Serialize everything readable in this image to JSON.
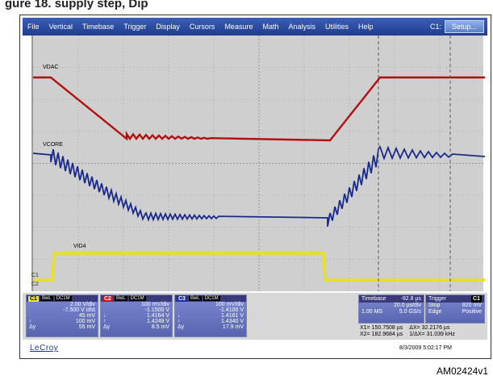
{
  "page": {
    "cut_title": "gure 18.    supply  step, Dip",
    "footer_code": "AM02424v1"
  },
  "menu": {
    "items": [
      "File",
      "Vertical",
      "Timebase",
      "Trigger",
      "Display",
      "Cursors",
      "Measure",
      "Math",
      "Analysis",
      "Utilities",
      "Help"
    ],
    "channel_label": "C1:",
    "setup_label": "Setup..."
  },
  "waveforms": {
    "vdac_label": "VDAC",
    "vcore_label": "VCORE",
    "vid4_label": "VID4",
    "colors": {
      "vdac": "#b01010",
      "vcore": "#1a2a8a",
      "vid4": "#e8e020",
      "grid": "#8a8a8a",
      "cursor": "#505050"
    },
    "markers": {
      "c1": "C1",
      "c2": "C2",
      "c3": "C3"
    }
  },
  "channels": {
    "c1": {
      "tag": "C1",
      "cplg": "BwL",
      "coupling": "DC1M",
      "vdiv": "2.00 V/div",
      "ofst": "-7.500 V ofst",
      "mean_lbl": "",
      "mean": "45 mV",
      "v1_lbl": "↑",
      "v1": "100 mV",
      "dv_lbl": "Δy",
      "dv": "55 mV"
    },
    "c2": {
      "tag": "C2",
      "cplg": "BwL",
      "coupling": "DC1M",
      "vdiv": "100 mV/div",
      "ofst": "-1.1500 V",
      "mean_lbl": "↓",
      "mean": "1.4164 V",
      "v1_lbl": "↑",
      "v1": "1.4249 V",
      "dv_lbl": "Δy",
      "dv": "8.5 mV"
    },
    "c3": {
      "tag": "C3",
      "cplg": "BwL",
      "coupling": "DC1M",
      "vdiv": "100 mV/div",
      "ofst": "-1.4100 V",
      "mean_lbl": "↓",
      "mean": "1.4161 V",
      "v1_lbl": "↑",
      "v1": "1.4340 V",
      "dv_lbl": "Δy",
      "dv": "17.9 mV"
    }
  },
  "timebase": {
    "title": "Timebase",
    "delay": "-92.8 µs",
    "tdiv": "20.0 µs/div",
    "samples": "1.00 MS",
    "rate": "5.0 GS/s"
  },
  "trigger": {
    "title": "Trigger",
    "tag": "C1",
    "mode": "Stop",
    "level": "820 mV",
    "type": "Edge",
    "slope": "Positive"
  },
  "cursors": {
    "x1": "X1= 150.7508 µs",
    "dx": "ΔX= 32.2176 µs",
    "x2": "X2= 182.9684 µs",
    "inv_dx": "1/ΔX= 31.039 kHz"
  },
  "brand": "LeCroy",
  "timestamp": "8/3/2009 5:02:17 PM"
}
